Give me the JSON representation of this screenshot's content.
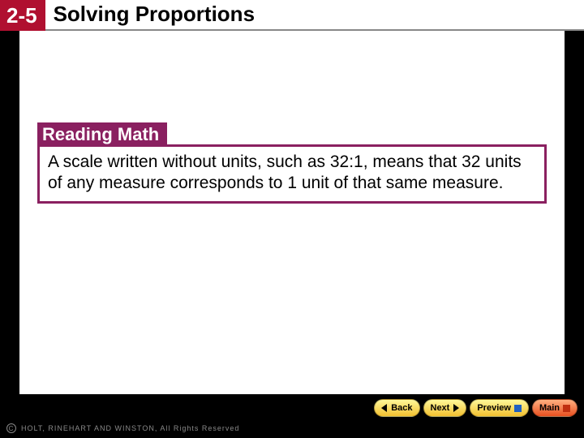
{
  "header": {
    "section_number": "2-5",
    "title": "Solving Proportions"
  },
  "callout": {
    "heading": "Reading Math",
    "body": "A scale written without units, such as 32:1, means that 32 units of any measure corresponds to 1 unit of that same measure."
  },
  "nav": {
    "back": "Back",
    "next": "Next",
    "preview": "Preview",
    "main": "Main"
  },
  "footer": {
    "copyright": "HOLT, RINEHART AND WINSTON,  All Rights Reserved"
  },
  "colors": {
    "section_bg": "#b01030",
    "callout_border": "#8a2060",
    "page_bg": "#000000",
    "content_bg": "#ffffff"
  }
}
